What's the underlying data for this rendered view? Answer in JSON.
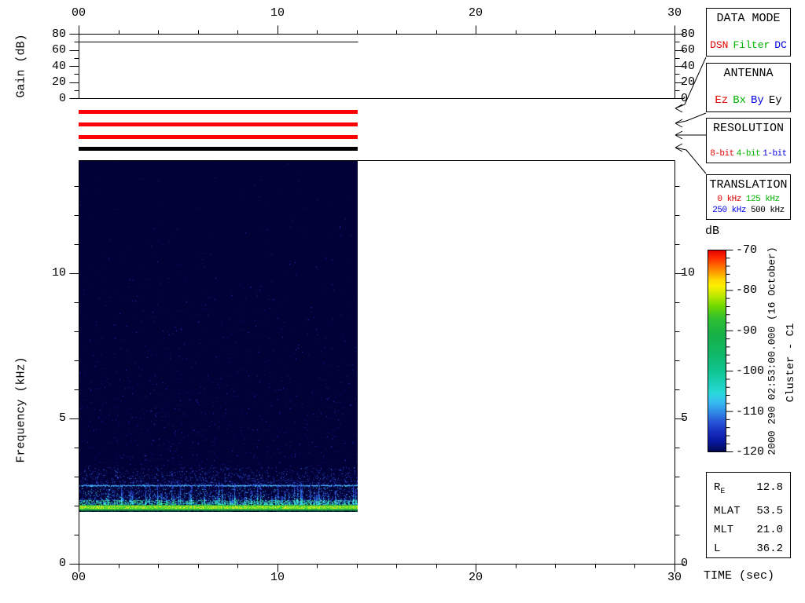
{
  "side_annotations": {
    "timestamp": "2000 290 02:53:00.000 (16 October)",
    "spacecraft": "Cluster - C1"
  },
  "axis_labels": {
    "time": "TIME (sec)",
    "freq": "Frequency (kHz)",
    "gain": "Gain (dB)"
  },
  "time_axis": {
    "ticks": [
      "00",
      "10",
      "20",
      "30"
    ]
  },
  "gain_panel": {
    "yticks": [
      "80",
      "60",
      "40",
      "20",
      "0"
    ],
    "gain_value_db": 70
  },
  "freq_axis": {
    "ticks": [
      "10",
      "5",
      "0"
    ]
  },
  "colorbar": {
    "label": "dB",
    "ticks": [
      "-70",
      "-80",
      "-90",
      "-100",
      "-110",
      "-120"
    ]
  },
  "legend_boxes": {
    "data_mode": {
      "title": "DATA MODE",
      "items": [
        {
          "label": "DSN",
          "color": "#e00000"
        },
        {
          "label": "Filter",
          "color": "#00b400"
        },
        {
          "label": "DC",
          "color": "#0000e0"
        }
      ]
    },
    "antenna": {
      "title": "ANTENNA",
      "items": [
        {
          "label": "Ez",
          "color": "#e00000"
        },
        {
          "label": "Bx",
          "color": "#00b400"
        },
        {
          "label": "By",
          "color": "#0000e0"
        },
        {
          "label": "Ey",
          "color": "#000000"
        }
      ]
    },
    "resolution": {
      "title": "RESOLUTION",
      "items": [
        {
          "label": "8-bit",
          "color": "#e00000"
        },
        {
          "label": "4-bit",
          "color": "#00b400"
        },
        {
          "label": "1-bit",
          "color": "#0000e0"
        }
      ]
    },
    "translation": {
      "title": "TRANSLATION",
      "items": [
        {
          "label": "0 kHz",
          "color": "#e00000"
        },
        {
          "label": "125 kHz",
          "color": "#00b400"
        },
        {
          "label": "250 kHz",
          "color": "#0000e0"
        },
        {
          "label": "500 kHz",
          "color": "#000000"
        }
      ]
    }
  },
  "status_bars": {
    "colors": [
      "#ff0000",
      "#ff0000",
      "#ff0000",
      "#000000"
    ],
    "meaning": {
      "data_mode": "DSN",
      "antenna": "Ez",
      "resolution": "8-bit",
      "translation": "500 kHz"
    }
  },
  "ephemeris": {
    "rows": [
      {
        "label": "R",
        "sub": "E",
        "value": "12.8"
      },
      {
        "label": "MLAT",
        "value": "53.5"
      },
      {
        "label": "MLT",
        "value": "21.0"
      },
      {
        "label": "L",
        "value": "36.2"
      }
    ]
  },
  "chart_data": [
    {
      "type": "line",
      "title": "Receiver Gain",
      "xlabel": "TIME (sec)",
      "ylabel": "Gain (dB)",
      "xlim": [
        0,
        30
      ],
      "ylim": [
        0,
        80
      ],
      "x": [
        0,
        14.2
      ],
      "y": [
        70,
        70
      ],
      "note": "constant 70 dB gain over the 0-14.2 s data interval; no data after 14.2 s"
    },
    {
      "type": "heatmap",
      "title": "Cluster C1 WBD spectrogram, 2000 290 02:53:00.000 (16 October)",
      "xlabel": "TIME (sec)",
      "ylabel": "Frequency (kHz)",
      "xlim": [
        0,
        30
      ],
      "ylim": [
        0,
        13.9
      ],
      "colorbar": {
        "label": "dB",
        "min": -120,
        "max": -70,
        "tick_step": 10
      },
      "data_extent": {
        "t_sec": [
          0,
          14.2
        ],
        "f_khz": [
          1.75,
          13.9
        ]
      },
      "features": [
        {
          "name": "intense narrowband emission",
          "f_khz": [
            1.85,
            2.05
          ],
          "level_db": -82
        },
        {
          "name": "impulsive burst band with vertical striations",
          "f_khz": [
            2.05,
            3.2
          ],
          "level_db": -103
        },
        {
          "name": "weak narrow line",
          "f_khz": 2.75,
          "level_db": -108
        },
        {
          "name": "background",
          "f_khz": [
            3.2,
            13.9
          ],
          "level_db": -120
        }
      ]
    }
  ]
}
